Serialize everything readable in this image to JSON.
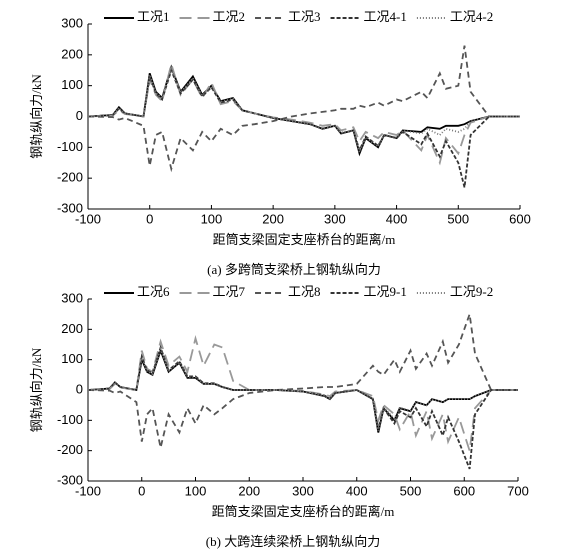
{
  "chart_data": [
    {
      "type": "line",
      "caption": "(a) 多跨筒支梁桥上钢轨纵向力",
      "xlabel": "距筒支梁固定支座桥台的距离/m",
      "ylabel": "钢轨纵向力/kN",
      "x": [
        -100,
        -60,
        -50,
        -40,
        -10,
        0,
        10,
        20,
        35,
        50,
        70,
        85,
        100,
        115,
        135,
        150,
        170,
        200,
        230,
        260,
        280,
        300,
        310,
        330,
        340,
        350,
        370,
        380,
        400,
        410,
        440,
        450,
        470,
        480,
        500,
        510,
        520,
        550,
        600
      ],
      "series": [
        {
          "name": "工况1",
          "color": "#000000",
          "dash": "none",
          "values": [
            0,
            5,
            30,
            10,
            0,
            140,
            80,
            60,
            160,
            80,
            130,
            70,
            100,
            50,
            60,
            20,
            10,
            -5,
            -15,
            -25,
            -40,
            -30,
            -55,
            -45,
            -120,
            -70,
            -100,
            -60,
            -70,
            -45,
            -50,
            -35,
            -40,
            -30,
            -30,
            -25,
            -15,
            0,
            0
          ]
        },
        {
          "name": "工况2",
          "color": "#999999",
          "dash": "12 6",
          "values": [
            0,
            3,
            20,
            8,
            0,
            120,
            70,
            50,
            170,
            70,
            120,
            60,
            110,
            40,
            50,
            20,
            10,
            -3,
            -10,
            -20,
            -30,
            -25,
            -45,
            -35,
            -80,
            -50,
            -70,
            -50,
            -60,
            -45,
            -110,
            -60,
            -150,
            -70,
            -120,
            -60,
            -20,
            0,
            0
          ]
        },
        {
          "name": "工况3",
          "color": "#555555",
          "dash": "6 4",
          "values": [
            0,
            -2,
            -10,
            -5,
            -30,
            -160,
            -60,
            -50,
            -170,
            -70,
            -110,
            -50,
            -80,
            -40,
            -60,
            -30,
            -25,
            -15,
            0,
            10,
            15,
            20,
            25,
            25,
            35,
            30,
            45,
            35,
            55,
            50,
            80,
            60,
            140,
            90,
            100,
            230,
            80,
            0,
            0
          ]
        },
        {
          "name": "工况4-1",
          "color": "#333333",
          "dash": "4 2",
          "values": [
            0,
            5,
            25,
            10,
            0,
            130,
            75,
            55,
            150,
            75,
            120,
            65,
            95,
            45,
            55,
            20,
            10,
            -5,
            -15,
            -25,
            -40,
            -30,
            -55,
            -45,
            -110,
            -65,
            -95,
            -60,
            -70,
            -50,
            -90,
            -55,
            -130,
            -80,
            -150,
            -230,
            -60,
            0,
            0
          ]
        },
        {
          "name": "工况4-2",
          "color": "#777777",
          "dash": "1 2",
          "values": [
            0,
            4,
            28,
            10,
            0,
            135,
            78,
            58,
            155,
            78,
            125,
            68,
            98,
            48,
            58,
            20,
            10,
            -5,
            -15,
            -25,
            -38,
            -30,
            -52,
            -45,
            -115,
            -68,
            -98,
            -60,
            -68,
            -45,
            -55,
            -40,
            -60,
            -40,
            -50,
            -40,
            -15,
            0,
            0
          ]
        }
      ],
      "xlim": [
        -100,
        600
      ],
      "xticks": [
        -100,
        0,
        100,
        200,
        300,
        400,
        500,
        600
      ],
      "ylim": [
        -300,
        300
      ],
      "yticks": [
        -300,
        -200,
        -100,
        0,
        100,
        200,
        300
      ],
      "legend": "top"
    },
    {
      "type": "line",
      "caption": "(b) 大跨连续梁桥上钢轨纵向力",
      "xlabel": "距筒支梁固定支座桥台的距离/m",
      "ylabel": "钢轨纵向力/kN",
      "x": [
        -100,
        -60,
        -50,
        -40,
        -10,
        0,
        10,
        20,
        35,
        50,
        70,
        85,
        100,
        115,
        135,
        150,
        170,
        200,
        250,
        300,
        340,
        350,
        360,
        400,
        430,
        440,
        450,
        470,
        480,
        500,
        510,
        530,
        540,
        560,
        570,
        590,
        610,
        620,
        650,
        700
      ],
      "series": [
        {
          "name": "工况6",
          "color": "#000000",
          "dash": "none",
          "values": [
            0,
            5,
            25,
            10,
            0,
            100,
            60,
            50,
            130,
            60,
            90,
            40,
            40,
            20,
            20,
            10,
            0,
            0,
            0,
            -5,
            -20,
            -30,
            -10,
            0,
            -30,
            -140,
            -60,
            -100,
            -60,
            -70,
            -40,
            -50,
            -30,
            -40,
            -30,
            -30,
            -30,
            -20,
            0,
            0
          ]
        },
        {
          "name": "工况7",
          "color": "#999999",
          "dash": "12 6",
          "values": [
            0,
            3,
            20,
            8,
            0,
            130,
            70,
            60,
            160,
            80,
            110,
            60,
            170,
            80,
            150,
            140,
            30,
            0,
            0,
            -3,
            -15,
            -20,
            -5,
            0,
            -20,
            -100,
            -50,
            -80,
            -130,
            -70,
            -150,
            -70,
            -160,
            -80,
            -170,
            -90,
            -200,
            -60,
            0,
            0
          ]
        },
        {
          "name": "工况8",
          "color": "#555555",
          "dash": "6 4",
          "values": [
            0,
            -2,
            -10,
            -5,
            -40,
            -170,
            -80,
            -60,
            -190,
            -80,
            -140,
            -60,
            -110,
            -50,
            -80,
            -60,
            -30,
            -10,
            0,
            5,
            10,
            10,
            10,
            20,
            80,
            60,
            50,
            100,
            60,
            130,
            70,
            120,
            80,
            160,
            90,
            150,
            250,
            120,
            0,
            0
          ]
        },
        {
          "name": "工况9-1",
          "color": "#333333",
          "dash": "4 2",
          "values": [
            0,
            5,
            25,
            10,
            0,
            110,
            65,
            55,
            140,
            65,
            95,
            45,
            45,
            22,
            22,
            10,
            0,
            0,
            0,
            -5,
            -18,
            -28,
            -10,
            0,
            -30,
            -130,
            -60,
            -110,
            -70,
            -90,
            -60,
            -120,
            -70,
            -150,
            -90,
            -170,
            -260,
            -80,
            0,
            0
          ]
        },
        {
          "name": "工况9-2",
          "color": "#777777",
          "dash": "1 2",
          "values": [
            0,
            5,
            25,
            10,
            0,
            105,
            62,
            52,
            135,
            62,
            92,
            42,
            42,
            20,
            20,
            10,
            0,
            0,
            0,
            -5,
            -20,
            -28,
            -10,
            0,
            -28,
            -135,
            -58,
            -95,
            -58,
            -68,
            -40,
            -50,
            -30,
            -40,
            -30,
            -30,
            -30,
            -20,
            0,
            0
          ]
        }
      ],
      "xlim": [
        -100,
        700
      ],
      "xticks": [
        -100,
        0,
        100,
        200,
        300,
        400,
        500,
        600,
        700
      ],
      "ylim": [
        -300,
        300
      ],
      "yticks": [
        -300,
        -200,
        -100,
        0,
        100,
        200,
        300
      ],
      "legend": "top"
    }
  ]
}
